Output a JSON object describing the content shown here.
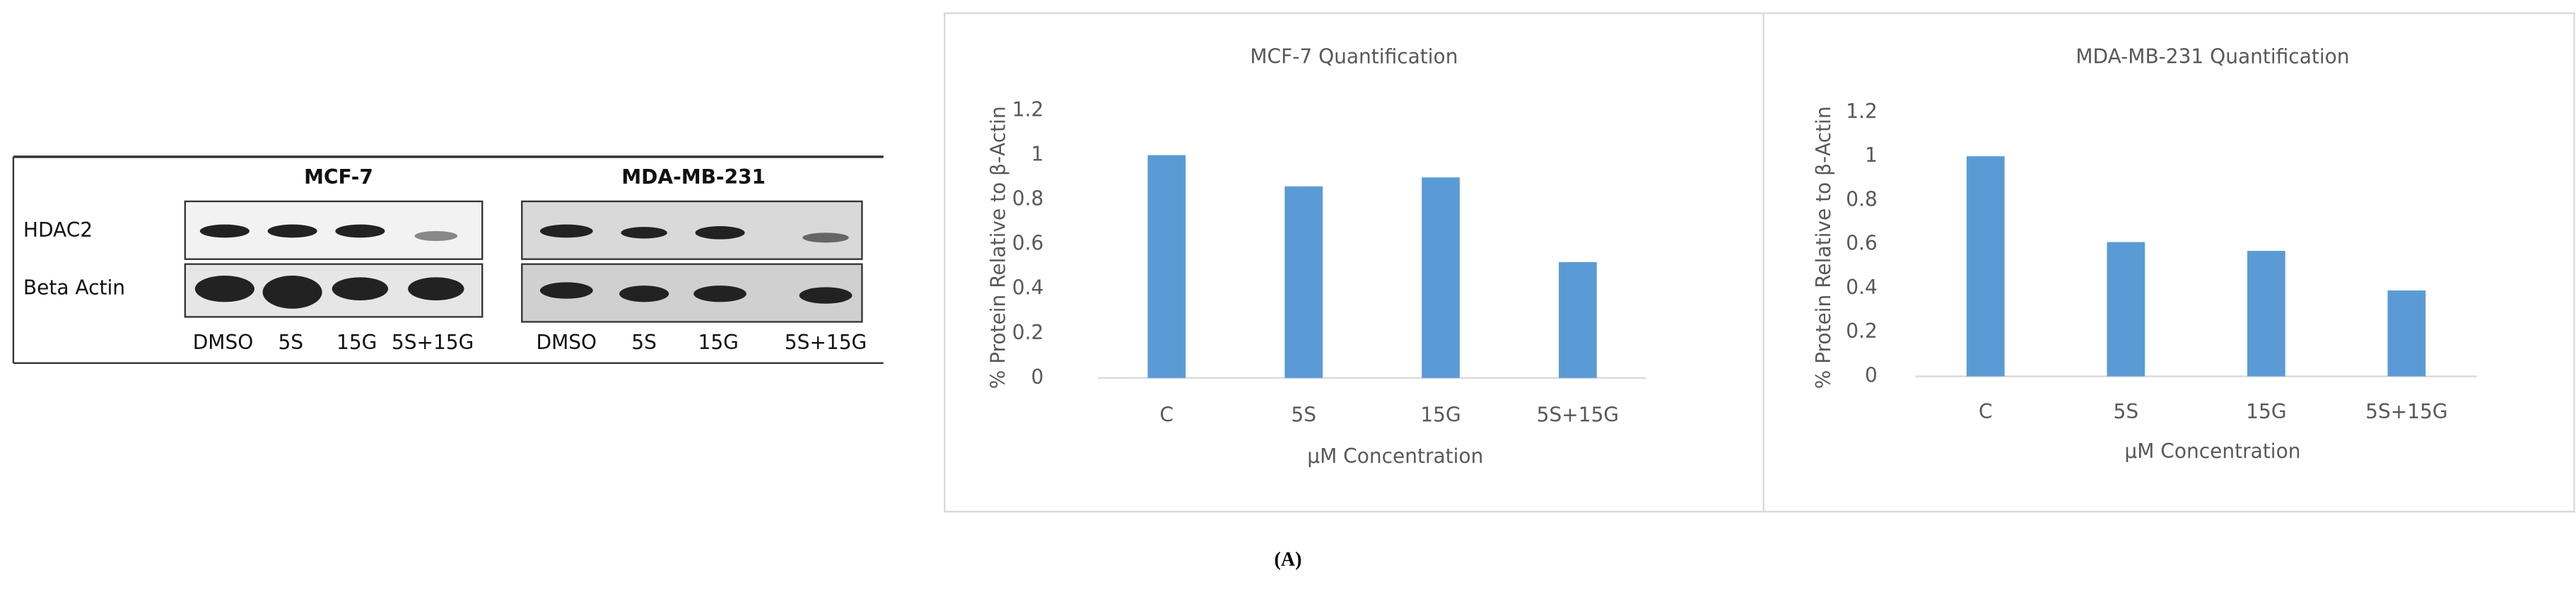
{
  "blot": {
    "groups": [
      "MCF-7",
      "MDA-MB-231"
    ],
    "rows": [
      "HDAC2",
      "Beta Actin"
    ],
    "lanes": [
      [
        "DMSO",
        "5S",
        "15G",
        "5S+15G"
      ],
      [
        "DMSO",
        "5S",
        "15G",
        "5S+15G"
      ]
    ]
  },
  "chart_data": [
    {
      "type": "bar",
      "title": "MCF-7 Quantification",
      "x_label": "µM Concentration",
      "y_label": "% Protein Relative to β-Actin",
      "categories": [
        "C",
        "5S",
        "15G",
        "5S+15G"
      ],
      "values": [
        1,
        0.86,
        0.9,
        0.52
      ],
      "color": "#5b9bd5",
      "ylim": [
        0,
        1.2
      ],
      "yticks": [
        0,
        0.2,
        0.4,
        0.6,
        0.8,
        1,
        1.2
      ]
    },
    {
      "type": "bar",
      "title": "MDA-MB-231 Quantification",
      "x_label": "µM Concentration",
      "y_label": "% Protein Relative to β-Actin",
      "categories": [
        "C",
        "5S",
        "15G",
        "5S+15G"
      ],
      "values": [
        1,
        0.61,
        0.57,
        0.39
      ],
      "color": "#5b9bd5",
      "ylim": [
        0,
        1.2
      ],
      "yticks": [
        0,
        0.2,
        0.4,
        0.6,
        0.8,
        1,
        1.2
      ]
    }
  ],
  "panel_label": "(A)"
}
